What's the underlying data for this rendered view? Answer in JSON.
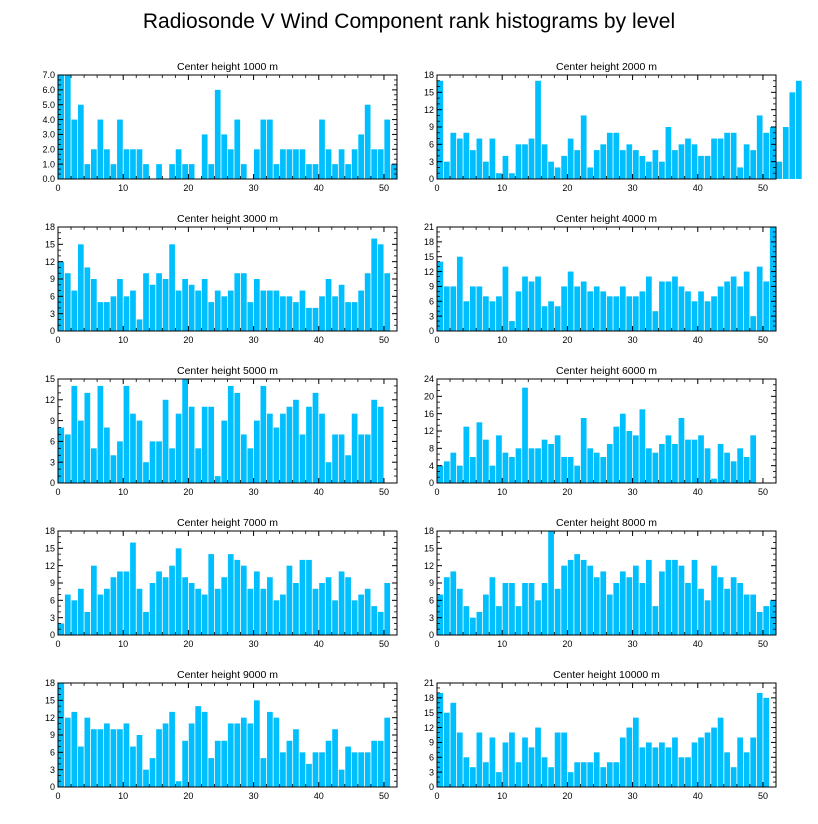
{
  "page_title": "Radiosonde V Wind Component rank histograms by level",
  "colors": {
    "bar": "#00bfff",
    "axis": "#000000",
    "background": "#ffffff"
  },
  "chart_data": [
    {
      "type": "bar",
      "title": "Center height 1000 m",
      "x_start": 0,
      "xlim": [
        0,
        52
      ],
      "xticks": [
        0,
        10,
        20,
        30,
        40,
        50
      ],
      "ylim": [
        0,
        7
      ],
      "yticks": [
        0,
        1,
        2,
        3,
        4,
        5,
        6,
        7
      ],
      "ytick_labels": [
        "0.0",
        "1.0",
        "2.0",
        "3.0",
        "4.0",
        "5.0",
        "6.0",
        "7.0"
      ],
      "values": [
        7,
        7,
        4,
        5,
        1,
        2,
        4,
        2,
        1,
        4,
        2,
        2,
        2,
        1,
        0,
        1,
        0,
        1,
        2,
        1,
        1,
        0,
        3,
        1,
        6,
        3,
        2,
        4,
        1,
        0,
        2,
        4,
        4,
        1,
        2,
        2,
        2,
        2,
        1,
        1,
        4,
        2,
        1,
        2,
        1,
        2,
        3,
        5,
        2,
        2,
        4,
        1
      ]
    },
    {
      "type": "bar",
      "title": "Center height 2000 m",
      "x_start": 0,
      "xlim": [
        0,
        52
      ],
      "xticks": [
        0,
        10,
        20,
        30,
        40,
        50
      ],
      "ylim": [
        0,
        18
      ],
      "yticks": [
        0,
        3,
        6,
        9,
        12,
        15,
        18
      ],
      "ytick_labels": [
        "0",
        "3",
        "6",
        "9",
        "12",
        "15",
        "18"
      ],
      "values": [
        17,
        3,
        8,
        7,
        8,
        5,
        7,
        3,
        7,
        1,
        4,
        1,
        6,
        6,
        7,
        17,
        6,
        3,
        2,
        4,
        7,
        5,
        11,
        2,
        5,
        6,
        8,
        8,
        5,
        6,
        5,
        4,
        3,
        5,
        3,
        9,
        5,
        6,
        7,
        6,
        4,
        4,
        7,
        7,
        8,
        8,
        2,
        6,
        5,
        11,
        8,
        9,
        3,
        9,
        15,
        17
      ]
    },
    {
      "type": "bar",
      "title": "Center height 3000 m",
      "x_start": 0,
      "xlim": [
        0,
        52
      ],
      "xticks": [
        0,
        10,
        20,
        30,
        40,
        50
      ],
      "ylim": [
        0,
        18
      ],
      "yticks": [
        0,
        3,
        6,
        9,
        12,
        15,
        18
      ],
      "ytick_labels": [
        "0",
        "3",
        "6",
        "9",
        "12",
        "15",
        "18"
      ],
      "values": [
        12,
        10,
        7,
        15,
        11,
        9,
        5,
        5,
        6,
        9,
        6,
        7,
        2,
        10,
        8,
        10,
        9,
        15,
        7,
        9,
        8,
        7,
        9,
        5,
        7,
        6,
        7,
        10,
        10,
        5,
        9,
        7,
        7,
        7,
        6,
        6,
        5,
        7,
        4,
        4,
        6,
        9,
        6,
        8,
        5,
        5,
        7,
        10,
        16,
        15,
        10
      ]
    },
    {
      "type": "bar",
      "title": "Center height 4000 m",
      "x_start": 0,
      "xlim": [
        0,
        52
      ],
      "xticks": [
        0,
        10,
        20,
        30,
        40,
        50
      ],
      "ylim": [
        0,
        21
      ],
      "yticks": [
        0,
        3,
        6,
        9,
        12,
        15,
        18,
        21
      ],
      "ytick_labels": [
        "0",
        "3",
        "6",
        "9",
        "12",
        "15",
        "18",
        "21"
      ],
      "values": [
        14,
        9,
        9,
        15,
        6,
        9,
        9,
        7,
        6,
        7,
        13,
        2,
        8,
        11,
        10,
        11,
        5,
        6,
        5,
        9,
        12,
        9,
        10,
        8,
        9,
        8,
        7,
        7,
        9,
        7,
        7,
        8,
        11,
        4,
        10,
        10,
        11,
        9,
        8,
        6,
        8,
        6,
        7,
        9,
        10,
        11,
        9,
        12,
        3,
        13,
        10,
        21
      ]
    },
    {
      "type": "bar",
      "title": "Center height 5000 m",
      "x_start": 0,
      "xlim": [
        0,
        52
      ],
      "xticks": [
        0,
        10,
        20,
        30,
        40,
        50
      ],
      "ylim": [
        0,
        15
      ],
      "yticks": [
        0,
        3,
        6,
        9,
        12,
        15
      ],
      "ytick_labels": [
        "0",
        "3",
        "6",
        "9",
        "12",
        "15"
      ],
      "values": [
        8,
        7,
        14,
        9,
        13,
        5,
        14,
        8,
        4,
        6,
        14,
        10,
        9,
        3,
        6,
        6,
        12,
        5,
        10,
        15,
        11,
        5,
        11,
        11,
        1,
        9,
        14,
        13,
        7,
        5,
        9,
        14,
        10,
        8,
        10,
        11,
        12,
        7,
        11,
        13,
        10,
        3,
        7,
        7,
        4,
        10,
        7,
        7,
        12,
        11
      ]
    },
    {
      "type": "bar",
      "title": "Center height 6000 m",
      "x_start": 0,
      "xlim": [
        0,
        52
      ],
      "xticks": [
        0,
        10,
        20,
        30,
        40,
        50
      ],
      "ylim": [
        0,
        24
      ],
      "yticks": [
        0,
        4,
        8,
        12,
        16,
        20,
        24
      ],
      "ytick_labels": [
        "0",
        "4",
        "8",
        "12",
        "16",
        "20",
        "24"
      ],
      "values": [
        4,
        5,
        7,
        4,
        13,
        6,
        14,
        10,
        4,
        11,
        7,
        6,
        8,
        22,
        8,
        8,
        10,
        9,
        11,
        6,
        6,
        4,
        15,
        8,
        7,
        6,
        9,
        13,
        16,
        12,
        11,
        17,
        8,
        7,
        9,
        11,
        9,
        15,
        10,
        10,
        11,
        8,
        1,
        9,
        7,
        5,
        8,
        6,
        11
      ]
    },
    {
      "type": "bar",
      "title": "Center height 7000 m",
      "x_start": 0,
      "xlim": [
        0,
        52
      ],
      "xticks": [
        0,
        10,
        20,
        30,
        40,
        50
      ],
      "ylim": [
        0,
        18
      ],
      "yticks": [
        0,
        3,
        6,
        9,
        12,
        15,
        18
      ],
      "ytick_labels": [
        "0",
        "3",
        "6",
        "9",
        "12",
        "15",
        "18"
      ],
      "values": [
        2,
        7,
        6,
        8,
        4,
        12,
        7,
        8,
        10,
        11,
        11,
        16,
        8,
        4,
        9,
        11,
        10,
        12,
        15,
        10,
        9,
        8,
        7,
        14,
        8,
        10,
        14,
        13,
        12,
        8,
        11,
        8,
        10,
        6,
        7,
        12,
        9,
        13,
        13,
        8,
        9,
        10,
        6,
        11,
        10,
        6,
        7,
        8,
        5,
        4,
        9
      ]
    },
    {
      "type": "bar",
      "title": "Center height 8000 m",
      "x_start": 0,
      "xlim": [
        0,
        52
      ],
      "xticks": [
        0,
        10,
        20,
        30,
        40,
        50
      ],
      "ylim": [
        0,
        18
      ],
      "yticks": [
        0,
        3,
        6,
        9,
        12,
        15,
        18
      ],
      "ytick_labels": [
        "0",
        "3",
        "6",
        "9",
        "12",
        "15",
        "18"
      ],
      "values": [
        7,
        10,
        11,
        8,
        5,
        3,
        4,
        7,
        10,
        5,
        9,
        9,
        5,
        9,
        9,
        6,
        9,
        18,
        8,
        12,
        13,
        14,
        13,
        12,
        10,
        11,
        7,
        9,
        11,
        10,
        12,
        9,
        13,
        5,
        11,
        13,
        13,
        12,
        9,
        13,
        8,
        6,
        12,
        10,
        8,
        10,
        9,
        7,
        7,
        4,
        5,
        6
      ]
    },
    {
      "type": "bar",
      "title": "Center height 9000 m",
      "x_start": 0,
      "xlim": [
        0,
        52
      ],
      "xticks": [
        0,
        10,
        20,
        30,
        40,
        50
      ],
      "ylim": [
        0,
        18
      ],
      "yticks": [
        0,
        3,
        6,
        9,
        12,
        15,
        18
      ],
      "ytick_labels": [
        "0",
        "3",
        "6",
        "9",
        "12",
        "15",
        "18"
      ],
      "values": [
        18,
        12,
        13,
        7,
        12,
        10,
        10,
        11,
        10,
        10,
        11,
        7,
        9,
        3,
        5,
        10,
        11,
        13,
        1,
        8,
        11,
        14,
        13,
        5,
        8,
        8,
        11,
        11,
        12,
        11,
        15,
        5,
        13,
        12,
        6,
        8,
        10,
        6,
        4,
        6,
        6,
        8,
        10,
        3,
        7,
        6,
        6,
        6,
        8,
        8,
        12
      ]
    },
    {
      "type": "bar",
      "title": "Center height 10000 m",
      "x_start": 0,
      "xlim": [
        0,
        52
      ],
      "xticks": [
        0,
        10,
        20,
        30,
        40,
        50
      ],
      "ylim": [
        0,
        21
      ],
      "yticks": [
        0,
        3,
        6,
        9,
        12,
        15,
        18,
        21
      ],
      "ytick_labels": [
        "0",
        "3",
        "6",
        "9",
        "12",
        "15",
        "18",
        "21"
      ],
      "values": [
        19,
        15,
        17,
        11,
        6,
        4,
        11,
        5,
        10,
        3,
        9,
        11,
        5,
        10,
        8,
        12,
        6,
        4,
        11,
        11,
        3,
        5,
        5,
        5,
        7,
        4,
        5,
        5,
        10,
        12,
        14,
        8,
        9,
        8,
        9,
        8,
        10,
        6,
        6,
        9,
        10,
        11,
        12,
        14,
        7,
        4,
        10,
        7,
        10,
        19,
        18
      ]
    }
  ]
}
